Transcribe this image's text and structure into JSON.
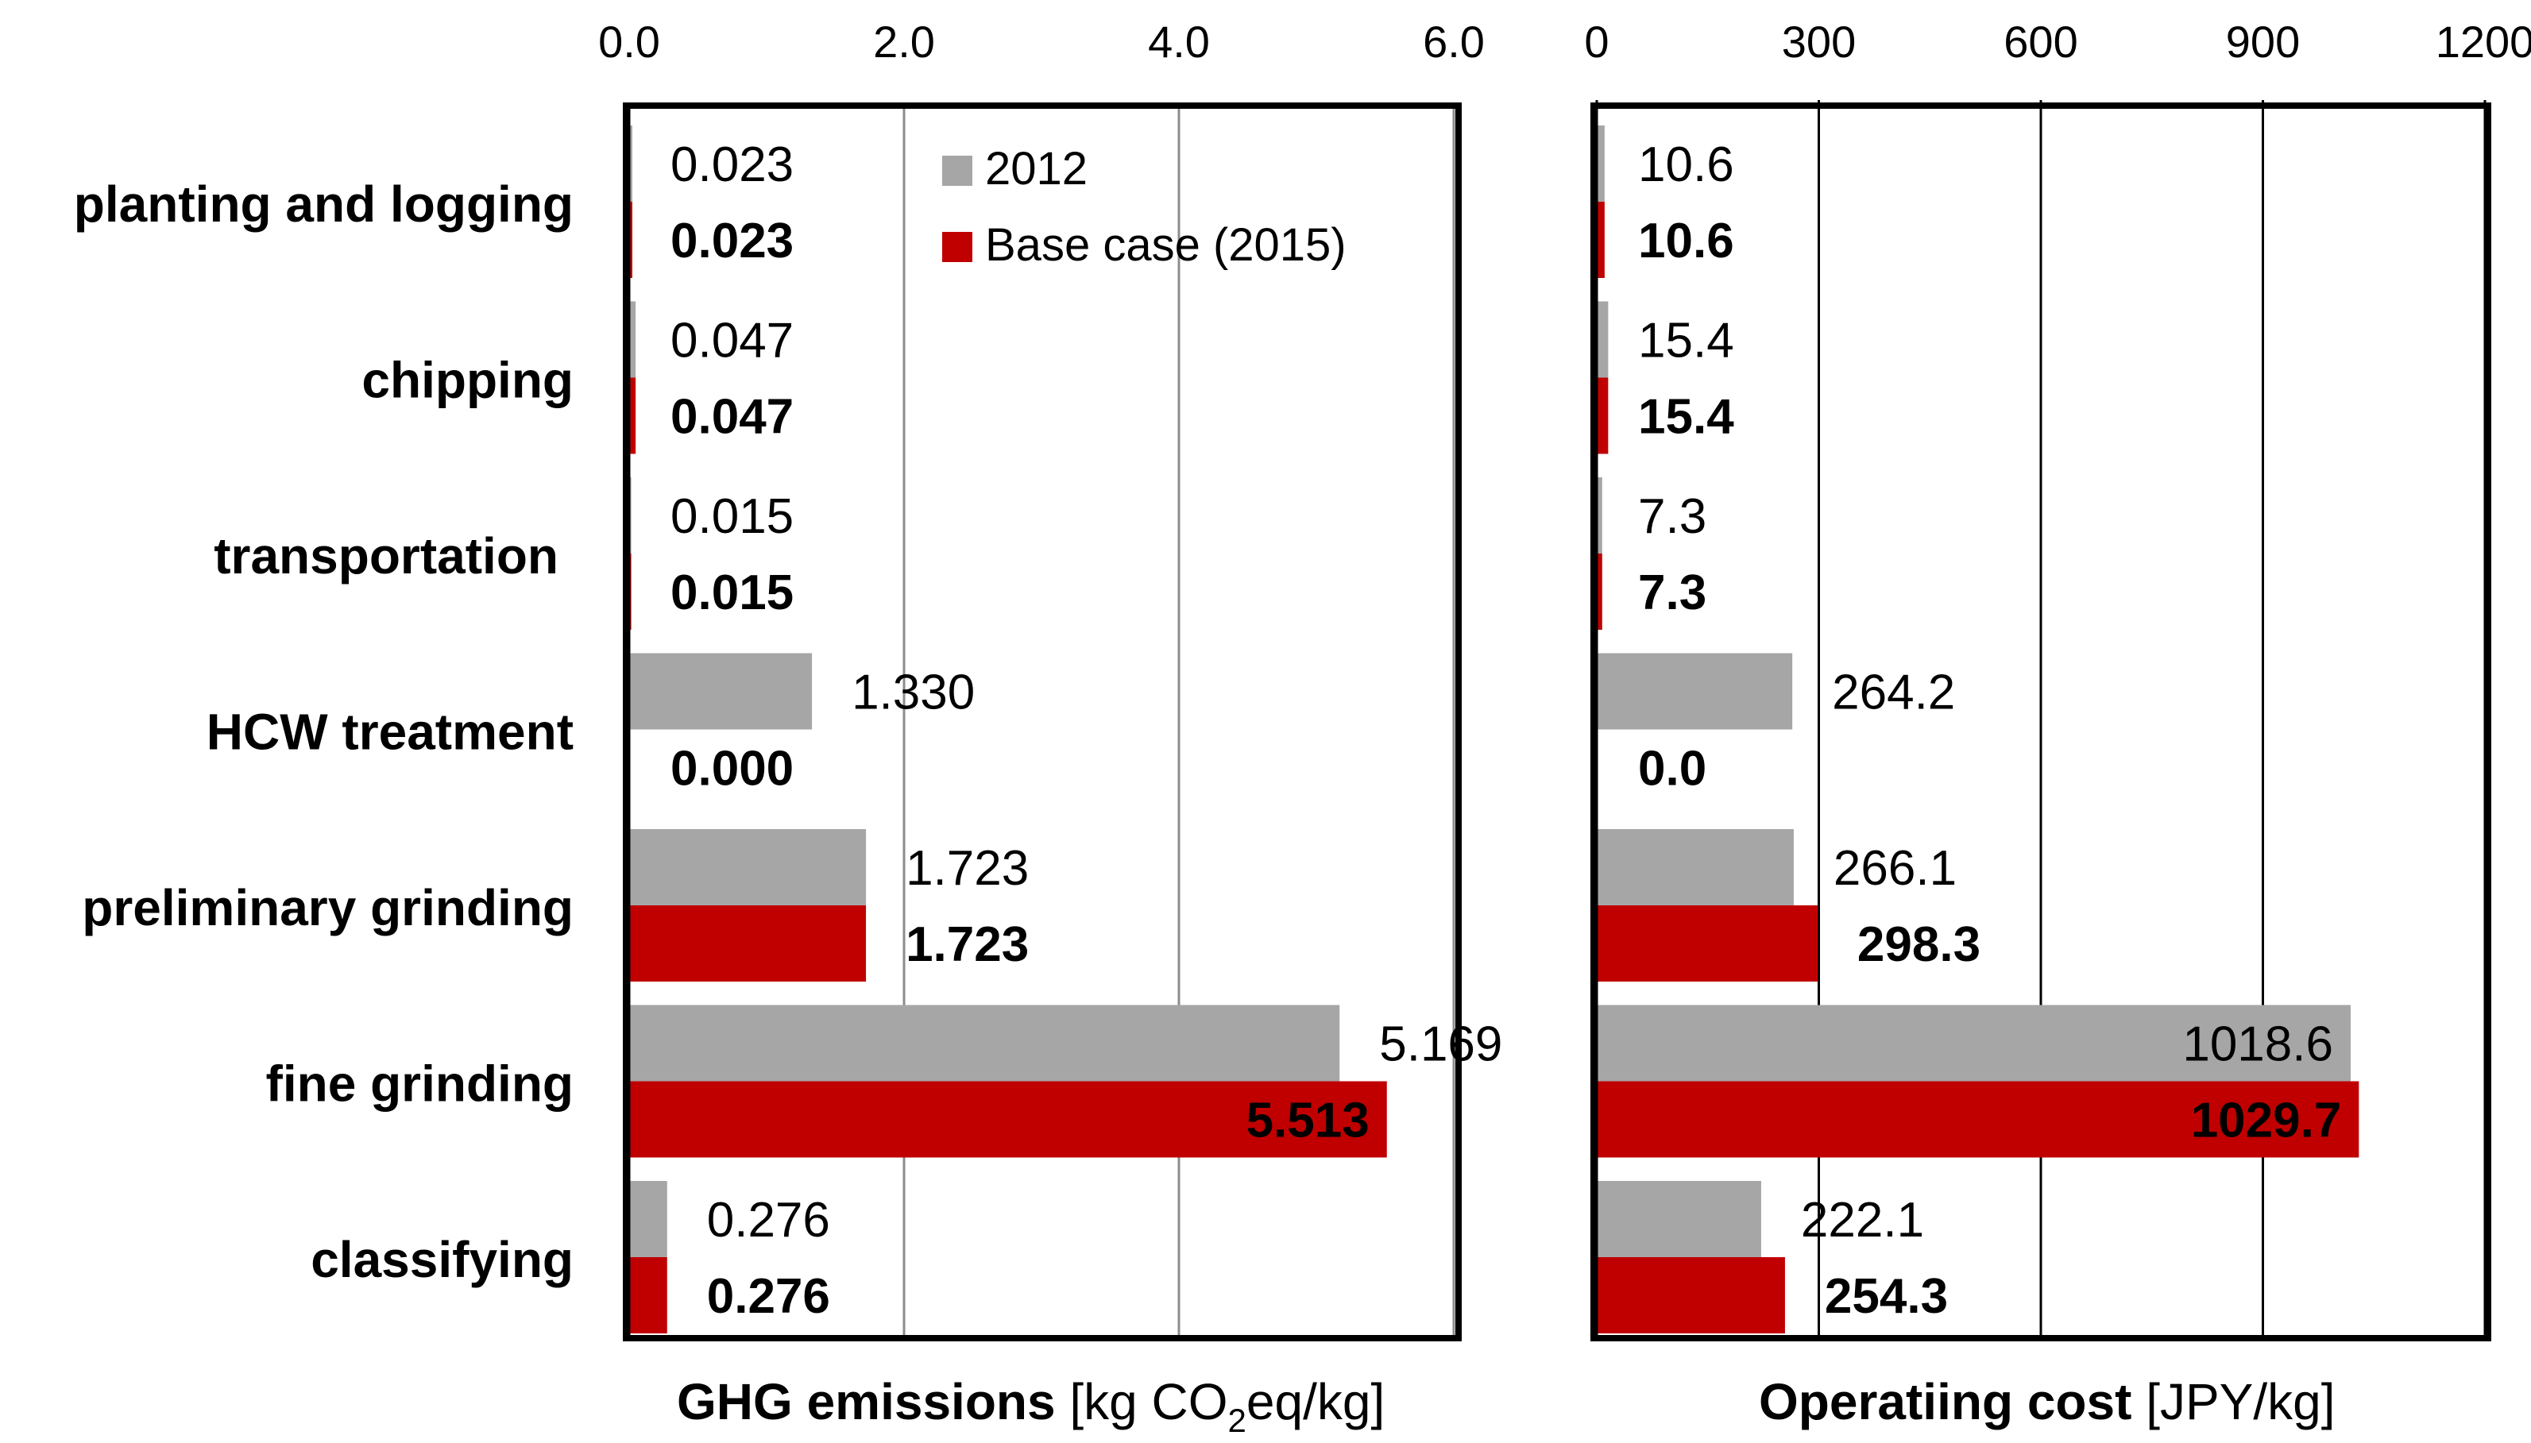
{
  "chart_data": [
    {
      "type": "bar",
      "orientation": "horizontal",
      "categories": [
        "planting and logging",
        "chipping",
        "transportation",
        "HCW treatment",
        "preliminary grinding",
        "fine grinding",
        "classifying"
      ],
      "series": [
        {
          "name": "2012",
          "color": "#a6a6a6",
          "values": [
            0.023,
            0.047,
            0.015,
            1.33,
            1.723,
            5.169,
            0.276
          ],
          "labels": [
            "0.023",
            "0.047",
            "0.015",
            "1.330",
            "1.723",
            "5.169",
            "0.276"
          ]
        },
        {
          "name": "Base case (2015)",
          "color": "#c00000",
          "values": [
            0.023,
            0.047,
            0.015,
            0.0,
            1.723,
            5.513,
            0.276
          ],
          "labels": [
            "0.023",
            "0.047",
            "0.015",
            "0.000",
            "1.723",
            "5.513",
            "0.276"
          ]
        }
      ],
      "xlim": [
        0,
        6
      ],
      "ticks": [
        "0.0",
        "2.0",
        "4.0",
        "6.0"
      ],
      "xlabel": {
        "bold": "GHG emissions",
        "unit_pre": "[kg CO",
        "unit_sub": "2",
        "unit_post": "eq/kg]"
      },
      "legend": {
        "position": "top-right",
        "entries": [
          "2012",
          "Base case (2015)"
        ]
      },
      "grid": true
    },
    {
      "type": "bar",
      "orientation": "horizontal",
      "categories": [
        "planting and logging",
        "chipping",
        "transportation",
        "HCW treatment",
        "preliminary grinding",
        "fine grinding",
        "classifying"
      ],
      "series": [
        {
          "name": "2012",
          "color": "#a6a6a6",
          "values": [
            10.6,
            15.4,
            7.3,
            264.2,
            266.1,
            1018.6,
            222.1
          ],
          "labels": [
            "10.6",
            "15.4",
            "7.3",
            "264.2",
            "266.1",
            "1018.6",
            "222.1"
          ]
        },
        {
          "name": "Base case (2015)",
          "color": "#c00000",
          "values": [
            10.6,
            15.4,
            7.3,
            0.0,
            298.3,
            1029.7,
            254.3
          ],
          "labels": [
            "10.6",
            "15.4",
            "7.3",
            "0.0",
            "298.3",
            "1029.7",
            "254.3"
          ]
        }
      ],
      "xlim": [
        0,
        1200
      ],
      "ticks": [
        "0",
        "300",
        "600",
        "900",
        "1200"
      ],
      "xlabel": {
        "bold": "Operatiing cost",
        "unit_pre": "[JPY/kg]",
        "unit_sub": "",
        "unit_post": ""
      },
      "grid": true
    }
  ]
}
